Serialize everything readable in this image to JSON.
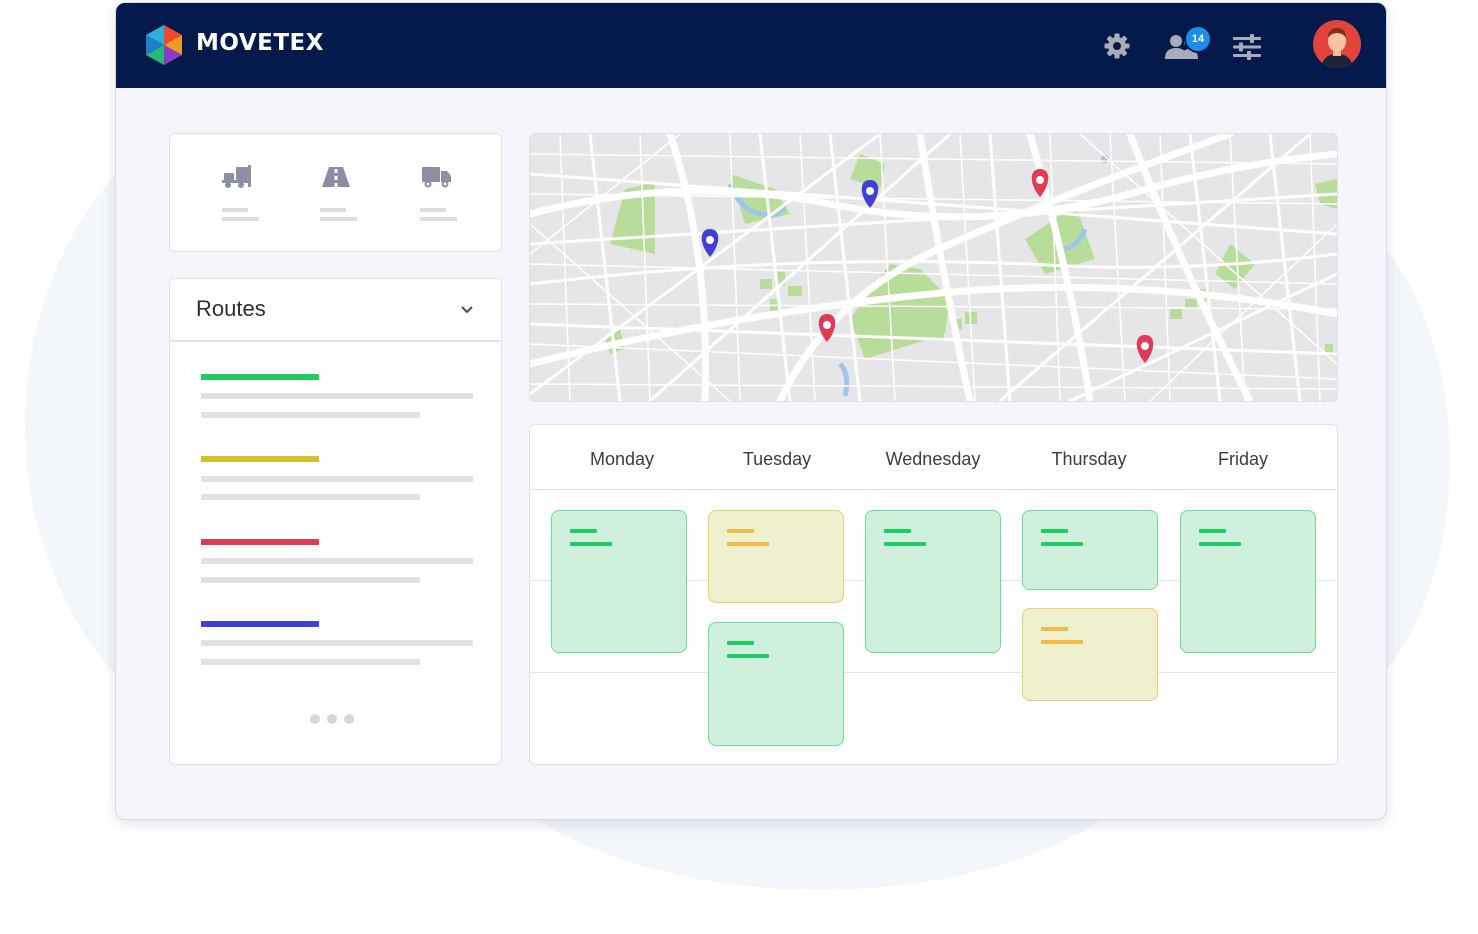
{
  "brand": {
    "name": "MOVETEX"
  },
  "header": {
    "icons": [
      "gear-icon",
      "team-users-icon",
      "sliders-icon",
      "user-avatar"
    ],
    "notification_count": "14"
  },
  "vehicles": {
    "icons": [
      "forklift-icon",
      "road-icon",
      "truck-icon"
    ]
  },
  "routes": {
    "title": "Routes",
    "colors": [
      "#1fcc63",
      "#d4c02c",
      "#e03a55",
      "#4040d6"
    ]
  },
  "map": {
    "markers": [
      {
        "color": "#4040d6"
      },
      {
        "color": "#4040d6"
      },
      {
        "color": "#e03a55"
      },
      {
        "color": "#e03a55"
      },
      {
        "color": "#e03a55"
      }
    ]
  },
  "schedule": {
    "days": [
      "Monday",
      "Tuesday",
      "Wednesday",
      "Thursday",
      "Friday"
    ],
    "task_colors": {
      "green": "#1fcc63",
      "yellow": "#f0b94a"
    }
  }
}
